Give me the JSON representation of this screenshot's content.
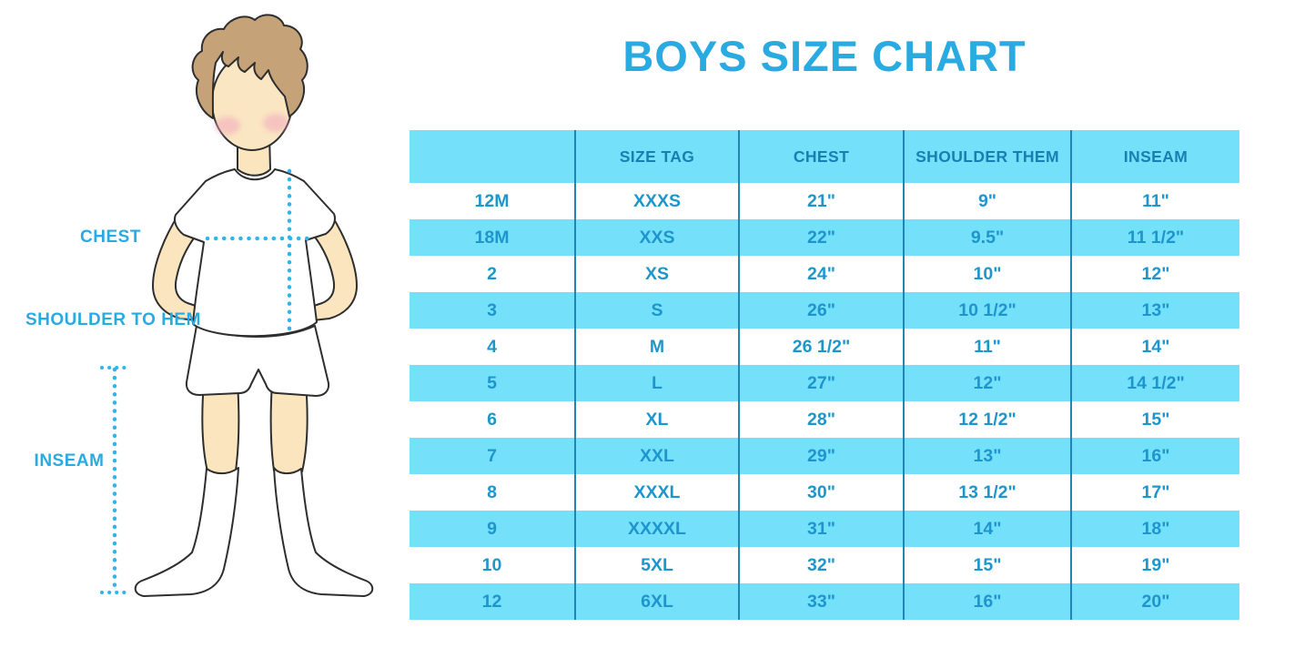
{
  "title": "BOYS SIZE CHART",
  "colors": {
    "accent": "#29ABE2",
    "band": "#75E0FA",
    "header_text": "#1780B2",
    "cell_text": "#1D96CE",
    "divider": "#1F86B4",
    "dotted_line": "#2BB7EB"
  },
  "figure": {
    "labels": {
      "chest": "CHEST",
      "shoulder_to_hem": "SHOULDER TO HEM",
      "inseam": "INSEAM"
    }
  },
  "chart_data": {
    "type": "table",
    "title": "BOYS SIZE CHART",
    "columns": [
      "",
      "SIZE TAG",
      "CHEST",
      "SHOULDER THEM",
      "INSEAM"
    ],
    "rows": [
      [
        "12M",
        "XXXS",
        "21\"",
        "9\"",
        "11\""
      ],
      [
        "18M",
        "XXS",
        "22\"",
        "9.5\"",
        "11 1/2\""
      ],
      [
        "2",
        "XS",
        "24\"",
        "10\"",
        "12\""
      ],
      [
        "3",
        "S",
        "26\"",
        "10 1/2\"",
        "13\""
      ],
      [
        "4",
        "M",
        "26 1/2\"",
        "11\"",
        "14\""
      ],
      [
        "5",
        "L",
        "27\"",
        "12\"",
        "14 1/2\""
      ],
      [
        "6",
        "XL",
        "28\"",
        "12 1/2\"",
        "15\""
      ],
      [
        "7",
        "XXL",
        "29\"",
        "13\"",
        "16\""
      ],
      [
        "8",
        "XXXL",
        "30\"",
        "13 1/2\"",
        "17\""
      ],
      [
        "9",
        "XXXXL",
        "31\"",
        "14\"",
        "18\""
      ],
      [
        "10",
        "5XL",
        "32\"",
        "15\"",
        "19\""
      ],
      [
        "12",
        "6XL",
        "33\"",
        "16\"",
        "20\""
      ]
    ]
  }
}
